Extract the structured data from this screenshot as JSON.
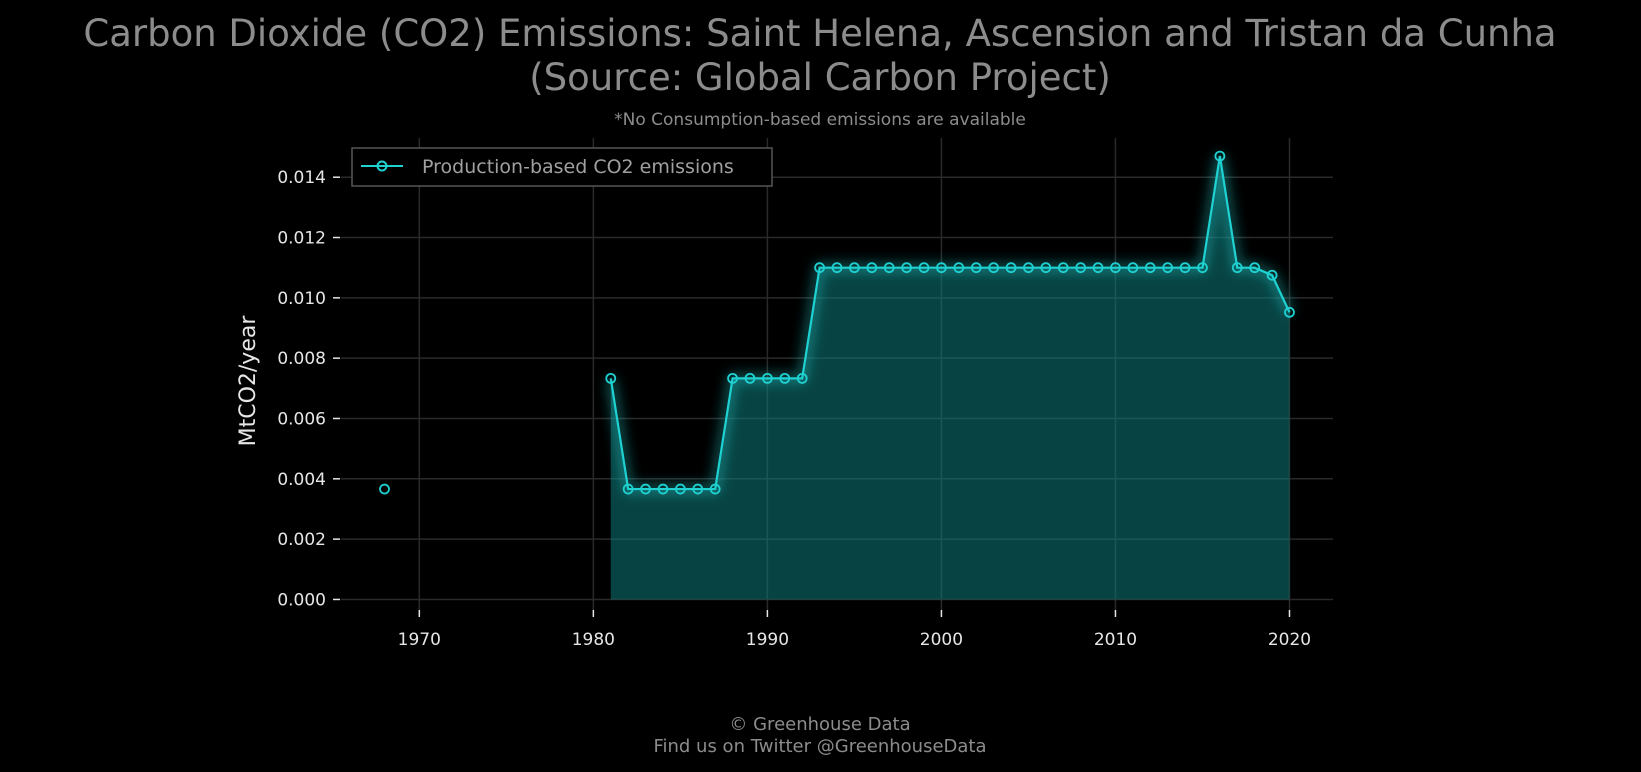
{
  "chart_data": {
    "type": "line",
    "title_line1": "Carbon Dioxide (CO2) Emissions: Saint Helena, Ascension and Tristan da Cunha",
    "title_line2": "(Source: Global Carbon Project)",
    "subtitle": "*No Consumption-based emissions are available",
    "xlabel": "",
    "ylabel": "MtCO2/year",
    "xlim": [
      1965.5,
      2022.5
    ],
    "ylim": [
      -0.00035,
      0.0153
    ],
    "x_ticks": [
      1970,
      1980,
      1990,
      2000,
      2010,
      2020
    ],
    "y_ticks": [
      0.0,
      0.002,
      0.004,
      0.006,
      0.008,
      0.01,
      0.012,
      0.014
    ],
    "y_tick_labels": [
      "0.000",
      "0.002",
      "0.004",
      "0.006",
      "0.008",
      "0.010",
      "0.012",
      "0.014"
    ],
    "grid": true,
    "legend_position": "top-left",
    "colors": {
      "line": "#1fd1d1",
      "fill": "#0f7a7a",
      "grid": "#2a2a2a",
      "background": "#000000"
    },
    "series": [
      {
        "name": "Production-based CO2 emissions",
        "points": [
          [
            1968,
            0.00366
          ],
          [
            1981,
            0.00733
          ],
          [
            1982,
            0.00366
          ],
          [
            1983,
            0.00366
          ],
          [
            1984,
            0.00366
          ],
          [
            1985,
            0.00366
          ],
          [
            1986,
            0.00366
          ],
          [
            1987,
            0.00366
          ],
          [
            1988,
            0.00733
          ],
          [
            1989,
            0.00733
          ],
          [
            1990,
            0.00733
          ],
          [
            1991,
            0.00733
          ],
          [
            1992,
            0.00733
          ],
          [
            1993,
            0.011
          ],
          [
            1994,
            0.011
          ],
          [
            1995,
            0.011
          ],
          [
            1996,
            0.011
          ],
          [
            1997,
            0.011
          ],
          [
            1998,
            0.011
          ],
          [
            1999,
            0.011
          ],
          [
            2000,
            0.011
          ],
          [
            2001,
            0.011
          ],
          [
            2002,
            0.011
          ],
          [
            2003,
            0.011
          ],
          [
            2004,
            0.011
          ],
          [
            2005,
            0.011
          ],
          [
            2006,
            0.011
          ],
          [
            2007,
            0.011
          ],
          [
            2008,
            0.011
          ],
          [
            2009,
            0.011
          ],
          [
            2010,
            0.011
          ],
          [
            2011,
            0.011
          ],
          [
            2012,
            0.011
          ],
          [
            2013,
            0.011
          ],
          [
            2014,
            0.011
          ],
          [
            2015,
            0.011
          ],
          [
            2016,
            0.0147
          ],
          [
            2017,
            0.011
          ],
          [
            2018,
            0.011
          ],
          [
            2019,
            0.01075
          ],
          [
            2020,
            0.00952
          ]
        ]
      }
    ]
  },
  "footer": {
    "line1": "© Greenhouse Data",
    "line2": "Find us on Twitter @GreenhouseData"
  }
}
